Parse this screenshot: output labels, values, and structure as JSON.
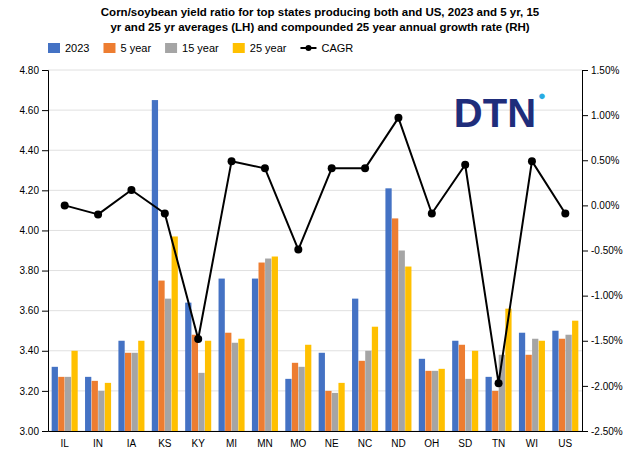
{
  "chart_data": {
    "type": "bar",
    "title": "Corn/soybean yield ratio for top states producing both and US, 2023 and 5 yr, 15",
    "subtitle": "yr and 25 yr averages (LH) and compounded 25 year annual growth rate (RH)",
    "categories": [
      "IL",
      "IN",
      "IA",
      "KS",
      "KY",
      "MI",
      "MN",
      "MO",
      "NE",
      "NC",
      "ND",
      "OH",
      "SD",
      "TN",
      "WI",
      "US"
    ],
    "series": [
      {
        "name": "2023",
        "color": "#4472c4",
        "values": [
          3.32,
          3.27,
          3.45,
          4.65,
          3.64,
          3.76,
          3.76,
          3.26,
          3.39,
          3.66,
          4.21,
          3.36,
          3.45,
          3.27,
          3.49,
          3.5
        ]
      },
      {
        "name": "5 year",
        "color": "#ed7d31",
        "values": [
          3.27,
          3.25,
          3.39,
          3.75,
          3.48,
          3.49,
          3.84,
          3.34,
          3.2,
          3.35,
          4.06,
          3.3,
          3.43,
          3.2,
          3.38,
          3.46
        ]
      },
      {
        "name": "15 year",
        "color": "#a5a5a5",
        "values": [
          3.27,
          3.2,
          3.39,
          3.66,
          3.29,
          3.44,
          3.86,
          3.32,
          3.19,
          3.4,
          3.9,
          3.3,
          3.26,
          3.38,
          3.46,
          3.48
        ]
      },
      {
        "name": "25 year",
        "color": "#ffc000",
        "values": [
          3.4,
          3.24,
          3.45,
          3.97,
          3.45,
          3.46,
          3.87,
          3.43,
          3.24,
          3.52,
          3.82,
          3.31,
          3.4,
          3.61,
          3.45,
          3.55
        ]
      },
      {
        "name": "CAGR",
        "type": "line",
        "axis": "y2",
        "color": "#000000",
        "marker": "circle",
        "values": [
          0.0,
          -0.1,
          0.17,
          -0.09,
          -1.48,
          0.49,
          0.41,
          -0.49,
          0.41,
          0.41,
          0.97,
          -0.09,
          0.45,
          -1.97,
          0.49,
          -0.09
        ]
      }
    ],
    "ylim": [
      3.0,
      4.8
    ],
    "yticks": [
      {
        "value": 3.0,
        "label": "3.00"
      },
      {
        "value": 3.2,
        "label": "3.20"
      },
      {
        "value": 3.4,
        "label": "3.40"
      },
      {
        "value": 3.6,
        "label": "3.60"
      },
      {
        "value": 3.8,
        "label": "3.80"
      },
      {
        "value": 4.0,
        "label": "4.00"
      },
      {
        "value": 4.2,
        "label": "4.20"
      },
      {
        "value": 4.4,
        "label": "4.40"
      },
      {
        "value": 4.6,
        "label": "4.60"
      },
      {
        "value": 4.8,
        "label": "4.80"
      }
    ],
    "y2lim": [
      -2.5,
      1.5
    ],
    "y2ticks": [
      {
        "value": -2.5,
        "label": "-2.50%"
      },
      {
        "value": -2.0,
        "label": "-2.00%"
      },
      {
        "value": -1.5,
        "label": "-1.50%"
      },
      {
        "value": -1.0,
        "label": "-1.00%"
      },
      {
        "value": -0.5,
        "label": "-0.50%"
      },
      {
        "value": 0.0,
        "label": "0.00%"
      },
      {
        "value": 0.5,
        "label": "0.50%"
      },
      {
        "value": 1.0,
        "label": "1.00%"
      },
      {
        "value": 1.5,
        "label": "1.50%"
      }
    ],
    "grid": true,
    "legend": "upper left",
    "annotations": [
      {
        "text": "DTN",
        "color": "#1f2d7b"
      },
      {
        "text": "●",
        "color": "#29abe2"
      }
    ]
  }
}
